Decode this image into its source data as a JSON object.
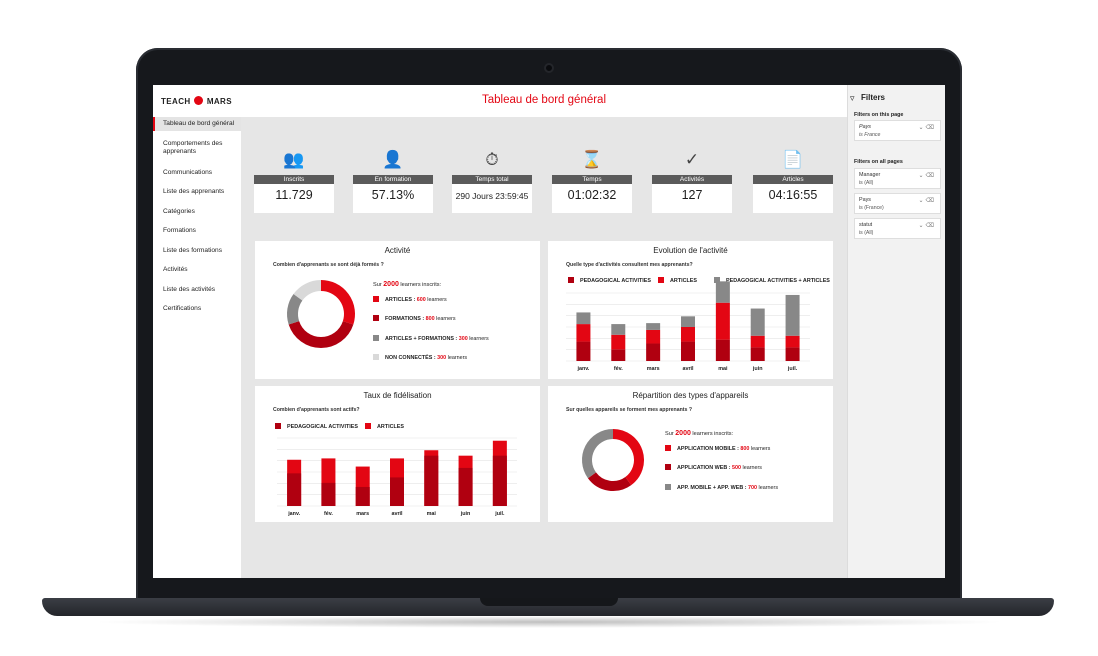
{
  "colors": {
    "red": "#e30613",
    "dark_red": "#b00010",
    "grey": "#888888",
    "light_grey": "#d9d9d9"
  },
  "brand": {
    "logo_left": "TEACH",
    "logo_right": "MARS"
  },
  "header": {
    "title": "Tableau de bord général"
  },
  "sidebar": {
    "items": [
      {
        "label": "Tableau de bord général",
        "active": true
      },
      {
        "label": "Comportements des apprenants"
      },
      {
        "label": "Communications"
      },
      {
        "label": "Liste des apprenants"
      },
      {
        "label": "Catégories"
      },
      {
        "label": "Formations"
      },
      {
        "label": "Liste des formations"
      },
      {
        "label": "Activités"
      },
      {
        "label": "Liste des activités"
      },
      {
        "label": "Certifications"
      }
    ]
  },
  "filters": {
    "title": "Filters",
    "this_page_label": "Filters on this page",
    "this_page": [
      {
        "name": "Pays",
        "value": "is France"
      }
    ],
    "all_pages_label": "Filters on all pages",
    "all_pages": [
      {
        "name": "Manager",
        "value": "is (All)"
      },
      {
        "name": "Pays",
        "value": "is (France)"
      },
      {
        "name": "statut",
        "value": "is (All)"
      }
    ]
  },
  "kpis": [
    {
      "icon": "users-icon",
      "label": "Inscrits",
      "value": "11.729"
    },
    {
      "icon": "learner-device-icon",
      "label": "En formation",
      "value": "57.13%"
    },
    {
      "icon": "stopwatch-icon",
      "label": "Temps total",
      "value": "290 Jours 23:59:45"
    },
    {
      "icon": "hourglass-icon",
      "label": "Temps",
      "value": "01:02:32"
    },
    {
      "icon": "checkmark-icon",
      "label": "Activités",
      "value": "127"
    },
    {
      "icon": "document-icon",
      "label": "Articles",
      "value": "04:16:55"
    }
  ],
  "activite": {
    "title": "Activité",
    "subtitle": "Combien d'apprenants se sont déjà formés ?",
    "total_prefix": "Sur",
    "total_value": "2000",
    "total_suffix": "learners inscrits:",
    "legend": [
      {
        "label": "ARTICLES :",
        "value": "600",
        "unit": "learners",
        "color": "#e30613"
      },
      {
        "label": "FORMATIONS :",
        "value": "800",
        "unit": "learners",
        "color": "#b00010"
      },
      {
        "label": "ARTICLES + FORMATIONS :",
        "value": "300",
        "unit": "learners",
        "color": "#888888"
      },
      {
        "label": "NON CONNECTÉS :",
        "value": "300",
        "unit": "learners",
        "color": "#d9d9d9"
      }
    ]
  },
  "evolution": {
    "title": "Evolution de l'activité",
    "subtitle": "Quelle type d'activités consultent mes apprenants?",
    "legend": [
      "PEDAGOGICAL ACTIVITIES",
      "ARTICLES",
      "PEDAGOGICAL ACTIVITIES + ARTICLES"
    ]
  },
  "fidelisation": {
    "title": "Taux de fidélisation",
    "subtitle": "Combien d'apprenants sont actifs?",
    "legend": [
      "PEDAGOGICAL ACTIVITIES",
      "ARTICLES"
    ]
  },
  "appareils": {
    "title": "Répartition des types d'appareils",
    "subtitle": "Sur quelles appareils se forment mes apprenants ?",
    "total_prefix": "Sur",
    "total_value": "2000",
    "total_suffix": "learners inscrits:",
    "legend": [
      {
        "label": "APPLICATION MOBILE :",
        "value": "800",
        "unit": "learners",
        "color": "#e30613"
      },
      {
        "label": "APPLICATION WEB :",
        "value": "500",
        "unit": "learners",
        "color": "#b00010"
      },
      {
        "label": "APP. MOBILE + APP. WEB :",
        "value": "700",
        "unit": "learners",
        "color": "#888888"
      }
    ]
  },
  "chart_data": [
    {
      "type": "pie",
      "title": "Activité",
      "categories": [
        "ARTICLES",
        "FORMATIONS",
        "ARTICLES + FORMATIONS",
        "NON CONNECTÉS"
      ],
      "values": [
        600,
        800,
        300,
        300
      ]
    },
    {
      "type": "bar",
      "title": "Evolution de l'activité",
      "categories": [
        "janv.",
        "fév.",
        "mars",
        "avril",
        "mai",
        "juin",
        "juil."
      ],
      "series": [
        {
          "name": "PEDAGOGICAL ACTIVITIES",
          "values": [
            20,
            12,
            18,
            20,
            22,
            14,
            14
          ]
        },
        {
          "name": "ARTICLES",
          "values": [
            18,
            15,
            14,
            15,
            38,
            12,
            12
          ]
        },
        {
          "name": "PEDAGOGICAL ACTIVITIES + ARTICLES",
          "values": [
            12,
            11,
            7,
            11,
            22,
            28,
            42
          ]
        }
      ]
    },
    {
      "type": "bar",
      "title": "Taux de fidélisation",
      "categories": [
        "janv.",
        "fév.",
        "mars",
        "avril",
        "mai",
        "juin",
        "juil."
      ],
      "series": [
        {
          "name": "PEDAGOGICAL ACTIVITIES",
          "values": [
            24,
            17,
            14,
            21,
            37,
            28,
            37
          ]
        },
        {
          "name": "ARTICLES",
          "values": [
            34,
            35,
            29,
            35,
            41,
            37,
            48
          ]
        }
      ]
    },
    {
      "type": "pie",
      "title": "Répartition des types d'appareils",
      "categories": [
        "APPLICATION MOBILE",
        "APPLICATION WEB",
        "APP. MOBILE + APP. WEB"
      ],
      "values": [
        800,
        500,
        700
      ]
    }
  ]
}
